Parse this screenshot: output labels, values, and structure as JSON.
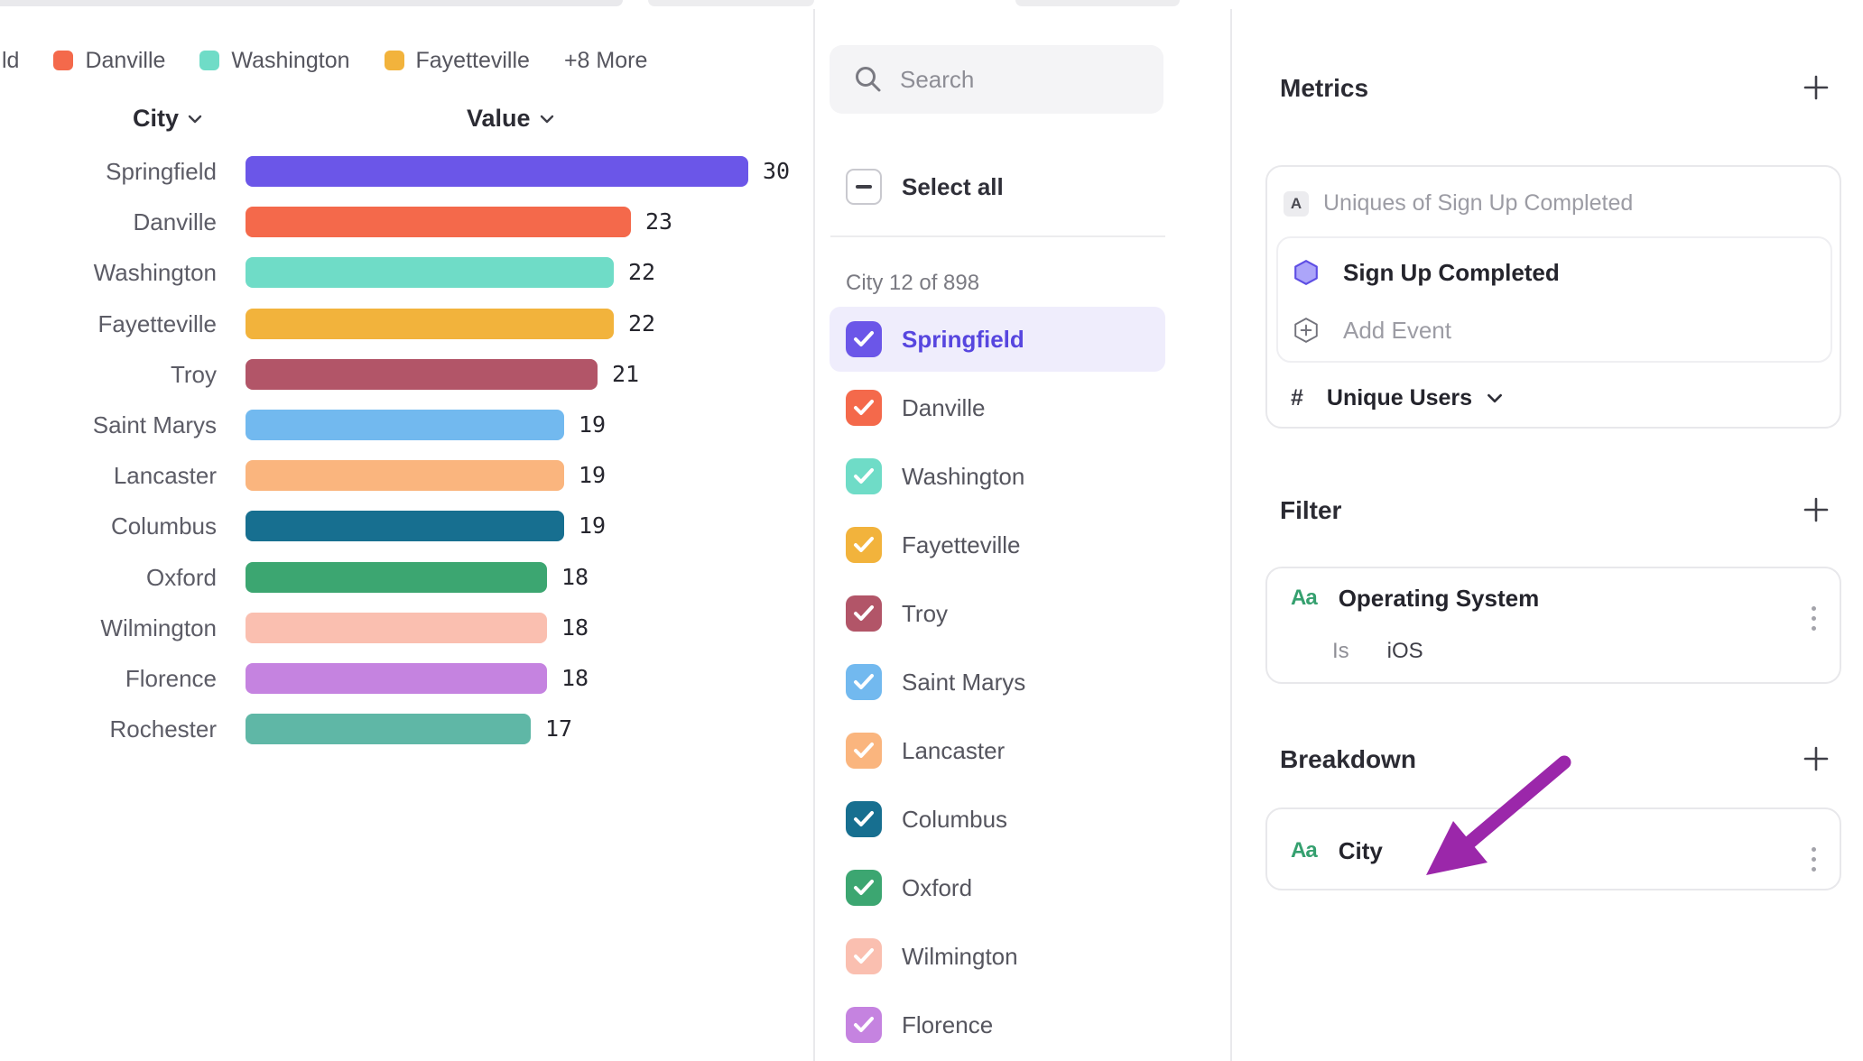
{
  "legend": {
    "truncated_first_label": "ld",
    "items": [
      {
        "label": "Danville",
        "color": "#F4694B"
      },
      {
        "label": "Washington",
        "color": "#6FDCC7"
      },
      {
        "label": "Fayetteville",
        "color": "#F2B33C"
      }
    ],
    "more_label": "+8 More"
  },
  "chart_data": {
    "type": "bar",
    "orientation": "horizontal",
    "title": "",
    "xlabel": "Value",
    "ylabel": "City",
    "column_headers": {
      "category": "City",
      "value": "Value"
    },
    "categories": [
      "Springfield",
      "Danville",
      "Washington",
      "Fayetteville",
      "Troy",
      "Saint Marys",
      "Lancaster",
      "Columbus",
      "Oxford",
      "Wilmington",
      "Florence",
      "Rochester"
    ],
    "values": [
      30,
      23,
      22,
      22,
      21,
      19,
      19,
      19,
      18,
      18,
      18,
      17
    ],
    "colors": [
      "#6B56E8",
      "#F4694B",
      "#6FDCC7",
      "#F2B33C",
      "#B25568",
      "#72B9EF",
      "#FAB57E",
      "#176F90",
      "#3CA671",
      "#FABFB0",
      "#C583E0",
      "#5FB7A6"
    ],
    "xlim": [
      0,
      30
    ],
    "grid": false,
    "legend_position": "top"
  },
  "city_selector": {
    "search_placeholder": "Search",
    "select_all_label": "Select all",
    "group_label": "City 12 of 898",
    "items": [
      {
        "label": "Springfield",
        "color": "#6B56E8",
        "checked": true,
        "highlighted": true
      },
      {
        "label": "Danville",
        "color": "#F4694B",
        "checked": true,
        "highlighted": false
      },
      {
        "label": "Washington",
        "color": "#6FDCC7",
        "checked": true,
        "highlighted": false
      },
      {
        "label": "Fayetteville",
        "color": "#F2B33C",
        "checked": true,
        "highlighted": false
      },
      {
        "label": "Troy",
        "color": "#B25568",
        "checked": true,
        "highlighted": false
      },
      {
        "label": "Saint Marys",
        "color": "#72B9EF",
        "checked": true,
        "highlighted": false
      },
      {
        "label": "Lancaster",
        "color": "#FAB57E",
        "checked": true,
        "highlighted": false
      },
      {
        "label": "Columbus",
        "color": "#176F90",
        "checked": true,
        "highlighted": false
      },
      {
        "label": "Oxford",
        "color": "#3CA671",
        "checked": true,
        "highlighted": false
      },
      {
        "label": "Wilmington",
        "color": "#FABFB0",
        "checked": true,
        "highlighted": false
      },
      {
        "label": "Florence",
        "color": "#C583E0",
        "checked": true,
        "highlighted": false
      }
    ]
  },
  "inspector": {
    "metrics": {
      "title": "Metrics",
      "row_badge": "A",
      "row_label": "Uniques of Sign Up Completed",
      "event_name": "Sign Up Completed",
      "add_event_label": "Add Event",
      "measure_prefix": "#",
      "measure_label": "Unique Users"
    },
    "filter": {
      "title": "Filter",
      "property_icon": "Aa",
      "property_name": "Operating System",
      "operator": "Is",
      "value": "iOS"
    },
    "breakdown": {
      "title": "Breakdown",
      "property_icon": "Aa",
      "property_name": "City"
    }
  },
  "colors": {
    "accent_purple": "#6B56E8",
    "highlight_row_bg": "#EFEDFC",
    "annotation_arrow": "#9B27AA",
    "property_icon_green": "#35A06F",
    "event_hex_fill": "#ACA5F9",
    "event_hex_stroke": "#5E4EE4"
  }
}
